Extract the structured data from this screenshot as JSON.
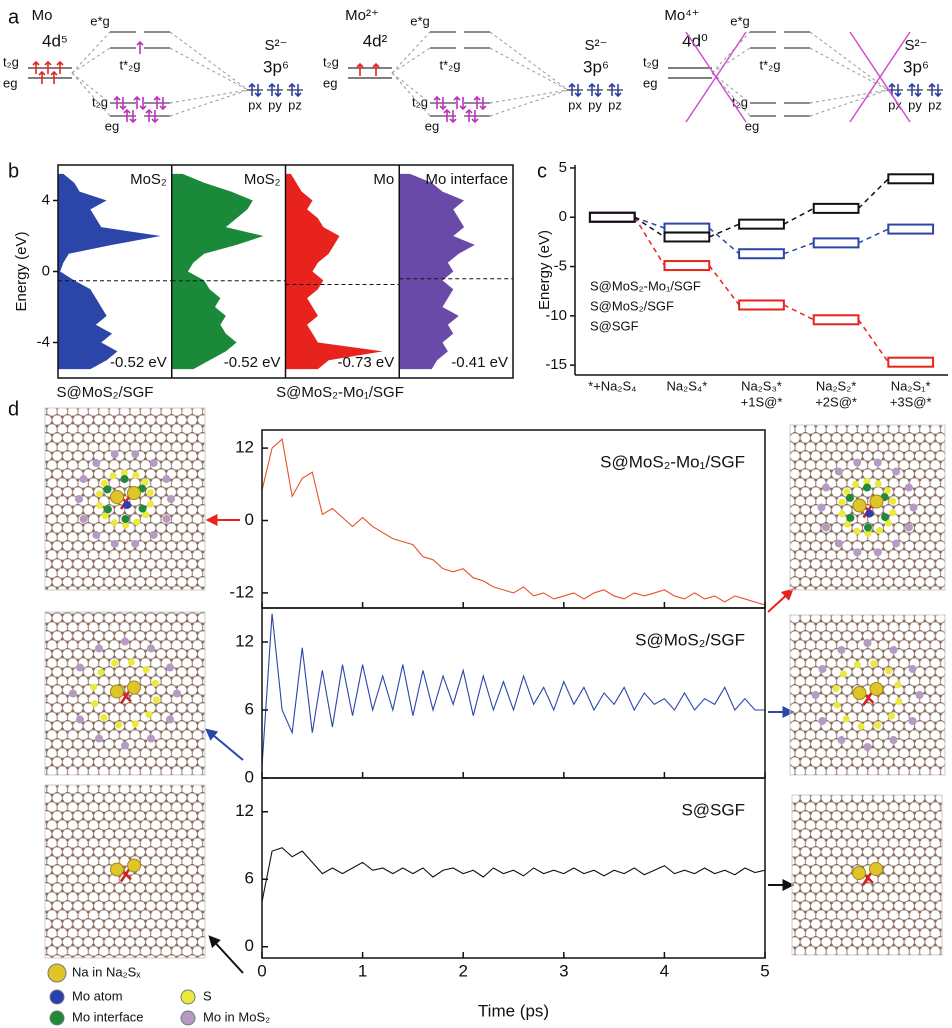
{
  "panel_labels": [
    "a",
    "b",
    "c",
    "d"
  ],
  "orbital_diagram": [
    {
      "ion": "Mo",
      "ion_color": "#e8231d",
      "config": "4d⁵",
      "metal_levels": [
        "t₂g",
        "eg"
      ],
      "mo_levels": [
        "e*g",
        "t*₂g",
        "t₂g",
        "eg"
      ],
      "ligand": "S²⁻",
      "ligand_color": "#2b3fa8",
      "ligand_config": "3p⁶",
      "orbitals": [
        "px",
        "py",
        "pz"
      ]
    },
    {
      "ion": "Mo²⁺",
      "ion_color": "#e8231d",
      "config": "4d²",
      "metal_levels": [
        "t₂g",
        "eg"
      ],
      "mo_levels": [
        "e*g",
        "t*₂g",
        "t₂g",
        "eg"
      ],
      "ligand": "S²⁻",
      "ligand_color": "#2b3fa8",
      "ligand_config": "3p⁶",
      "orbitals": [
        "px",
        "py",
        "pz"
      ]
    },
    {
      "ion": "Mo⁴⁺",
      "ion_color": "#e8231d",
      "config": "4d⁰",
      "metal_levels": [
        "t₂g",
        "eg"
      ],
      "mo_levels": [
        "e*g",
        "t*₂g",
        "t₂g",
        "eg"
      ],
      "ligand": "S²⁻",
      "ligand_color": "#2b3fa8",
      "ligand_config": "3p⁶",
      "orbitals": [
        "px",
        "py",
        "pz"
      ]
    }
  ],
  "chart_data": [
    {
      "type": "dos",
      "ylabel": "Energy (eV)",
      "ylim": [
        -6,
        6
      ],
      "yticks": [
        -4,
        0,
        4
      ],
      "xlim": [
        0,
        1
      ],
      "y": [
        -5.5,
        -5,
        -4.5,
        -4,
        -3.5,
        -3,
        -2.5,
        -2,
        -1.5,
        -1,
        -0.5,
        0,
        0.5,
        1,
        1.5,
        2,
        2.5,
        3,
        3.5,
        4,
        4.5,
        5,
        5.5
      ],
      "xlabels": [
        "S@MoS₂/SGF",
        "S@MoS₂-Mo₁/SGF"
      ],
      "series": [
        {
          "name": "MoS₂",
          "color": "#2b46a8",
          "fermi": -0.52,
          "fermi_label": "-0.52 eV",
          "values": [
            0.3,
            0.45,
            0.55,
            0.4,
            0.5,
            0.35,
            0.45,
            0.4,
            0.35,
            0.3,
            0.15,
            0.02,
            0.05,
            0.1,
            0.5,
            0.95,
            0.4,
            0.35,
            0.3,
            0.45,
            0.2,
            0.15,
            0.05
          ]
        },
        {
          "name": "MoS₂",
          "color": "#1a8a3a",
          "fermi": -0.52,
          "fermi_label": "-0.52 eV",
          "values": [
            0.2,
            0.35,
            0.5,
            0.6,
            0.5,
            0.45,
            0.5,
            0.4,
            0.45,
            0.35,
            0.3,
            0.15,
            0.2,
            0.3,
            0.6,
            0.85,
            0.5,
            0.6,
            0.7,
            0.75,
            0.55,
            0.3,
            0.1
          ]
        },
        {
          "name": "Mo",
          "color": "#e8231d",
          "fermi": -0.73,
          "fermi_label": "-0.73 eV",
          "values": [
            0.3,
            0.4,
            0.9,
            0.3,
            0.25,
            0.2,
            0.3,
            0.25,
            0.2,
            0.3,
            0.35,
            0.25,
            0.3,
            0.4,
            0.45,
            0.5,
            0.35,
            0.3,
            0.2,
            0.25,
            0.15,
            0.1,
            0.05
          ]
        },
        {
          "name": "Mo interface",
          "color": "#6a4aa8",
          "fermi": -0.41,
          "fermi_label": "-0.41 eV",
          "values": [
            0.3,
            0.35,
            0.45,
            0.4,
            0.5,
            0.45,
            0.55,
            0.4,
            0.45,
            0.5,
            0.4,
            0.5,
            0.45,
            0.55,
            0.7,
            0.5,
            0.6,
            0.55,
            0.5,
            0.6,
            0.4,
            0.3,
            0.1
          ]
        }
      ]
    },
    {
      "type": "level",
      "ylabel": "Energy (eV)",
      "ylim": [
        -16,
        5.3
      ],
      "yticks": [
        5,
        0,
        -5,
        -10,
        -15
      ],
      "categories": [
        [
          "*+Na₂S₄"
        ],
        [
          "Na₂S₄*"
        ],
        [
          "Na₂S₃*",
          "+1S@*"
        ],
        [
          "Na₂S₂*",
          "+2S@*"
        ],
        [
          "Na₂S₁*",
          "+3S@*"
        ]
      ],
      "series": [
        {
          "name": "S@MoS₂-Mo₁/SGF",
          "color": "#e8231d",
          "values": [
            0,
            -4.9,
            -8.9,
            -10.4,
            -14.7
          ]
        },
        {
          "name": "S@MoS₂/SGF",
          "color": "#2b46a8",
          "values": [
            0,
            -1.1,
            -3.7,
            -2.6,
            -1.2
          ]
        },
        {
          "name": "S@SGF",
          "color": "#111111",
          "values": [
            0,
            -2.0,
            -0.7,
            0.9,
            3.9
          ]
        }
      ]
    },
    {
      "type": "line",
      "xlabel": "Time (ps)",
      "xlim": [
        0,
        5
      ],
      "xticks": [
        0,
        1,
        2,
        3,
        4,
        5
      ],
      "x": [
        0,
        0.1,
        0.2,
        0.3,
        0.4,
        0.5,
        0.6,
        0.7,
        0.8,
        0.9,
        1,
        1.1,
        1.2,
        1.3,
        1.4,
        1.5,
        1.6,
        1.7,
        1.8,
        1.9,
        2,
        2.1,
        2.2,
        2.3,
        2.4,
        2.5,
        2.6,
        2.7,
        2.8,
        2.9,
        3,
        3.1,
        3.2,
        3.3,
        3.4,
        3.5,
        3.6,
        3.7,
        3.8,
        3.9,
        4,
        4.1,
        4.2,
        4.3,
        4.4,
        4.5,
        4.6,
        4.7,
        4.8,
        4.9,
        5
      ],
      "series": [
        {
          "name": "S@MoS₂-Mo₁/SGF",
          "color": "#e8502d",
          "ylim": [
            -14.5,
            15
          ],
          "yticks": [
            -12,
            0,
            12
          ],
          "values": [
            5,
            12,
            13.5,
            4,
            7,
            8,
            1,
            2,
            0.5,
            -1,
            0.5,
            -1,
            -2,
            -3,
            -3.5,
            -4,
            -6,
            -6.5,
            -8,
            -8.5,
            -8,
            -9.5,
            -10,
            -11,
            -11.5,
            -12,
            -11,
            -12.5,
            -12,
            -13,
            -12.5,
            -12,
            -13,
            -12,
            -11.5,
            -12.5,
            -13,
            -12,
            -12.5,
            -12,
            -11.5,
            -12.5,
            -13,
            -12,
            -13,
            -12.5,
            -13.5,
            -12.5,
            -13,
            -13.5,
            -14
          ]
        },
        {
          "name": "S@MoS₂/SGF",
          "color": "#2b46a8",
          "ylim": [
            0,
            15
          ],
          "yticks": [
            0,
            6,
            12
          ],
          "values": [
            1,
            14.5,
            6,
            4,
            11.5,
            4,
            9.5,
            4.5,
            10,
            5.5,
            10,
            6,
            9,
            6,
            10,
            5.5,
            9.5,
            6,
            9,
            6.5,
            9.5,
            5.5,
            9,
            6,
            8.5,
            6,
            9,
            6.5,
            8,
            6,
            8.5,
            6.5,
            8,
            6,
            7.5,
            6.5,
            8,
            6,
            7.5,
            6.5,
            7,
            6,
            7.5,
            6,
            7,
            6.5,
            8,
            6,
            7,
            6,
            6
          ]
        },
        {
          "name": "S@SGF",
          "color": "#111111",
          "ylim": [
            -1,
            15
          ],
          "yticks": [
            0,
            6,
            12
          ],
          "values": [
            4,
            8.5,
            8.8,
            8,
            8.5,
            7.5,
            6.5,
            7,
            6.5,
            7,
            7.5,
            6.8,
            7,
            6.5,
            7,
            6.5,
            7,
            6.2,
            6.8,
            7,
            6.5,
            6.8,
            6.2,
            7,
            6.5,
            6.8,
            6.3,
            7,
            6.5,
            6.8,
            6.5,
            7,
            6.5,
            6.8,
            6.3,
            6.8,
            6.5,
            7,
            6.4,
            6.8,
            7.2,
            6.5,
            6.8,
            6.5,
            7,
            6.5,
            6.8,
            6.4,
            7,
            6.6,
            6.8
          ]
        }
      ]
    }
  ],
  "structure_legend": [
    {
      "name": "Na in Na₂Sₓ",
      "color": "#e0c52a"
    },
    {
      "name": "Mo atom",
      "color": "#2a3fb0"
    },
    {
      "name": "S",
      "color": "#eaea3a"
    },
    {
      "name": "Mo interface",
      "color": "#1e8a3a"
    },
    {
      "name": "Mo in MoS₂",
      "color": "#b69ac4"
    }
  ]
}
